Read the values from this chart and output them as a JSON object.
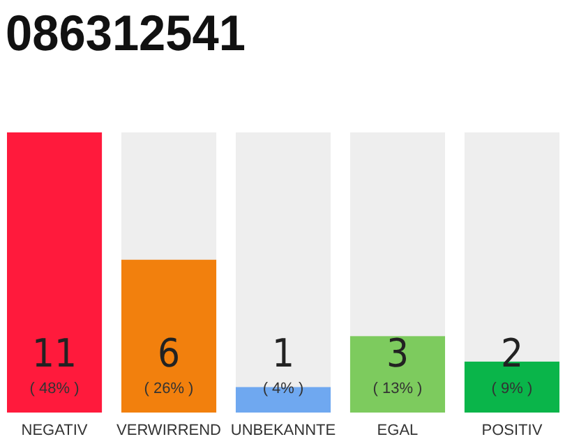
{
  "chart_data": {
    "type": "bar",
    "title": "086312541",
    "categories": [
      "NEGATIV",
      "VERWIRREND",
      "UNBEKANNTE",
      "EGAL",
      "POSITIV"
    ],
    "values": [
      11,
      6,
      1,
      3,
      2
    ],
    "colors": [
      "#ff1a3c",
      "#f2800d",
      "#6fa8f0",
      "#7dcb5e",
      "#0ab54a"
    ],
    "data_labels": true,
    "annotations": [
      "( 48% )",
      "( 26% )",
      "( 4% )",
      "( 13% )",
      "( 9% )"
    ]
  }
}
